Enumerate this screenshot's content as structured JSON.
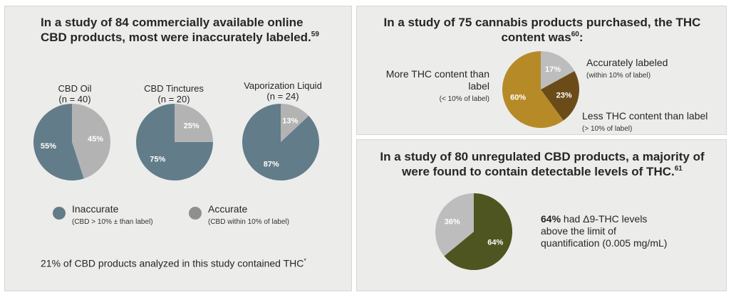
{
  "colors": {
    "inaccurate": "#627c89",
    "accurate": "#b3b3b3",
    "more_thc": "#b78a28",
    "less_thc": "#6b4c19",
    "accurately_labeled": "#bdbdbd",
    "thc_detected": "#4e5520",
    "thc_not_detected": "#bdbdbd"
  },
  "left": {
    "title_line1": "In a study of 84 commercially available online",
    "title_line2": "CBD products, most were inaccurately labeled.",
    "title_ref": "59",
    "legend": {
      "inaccurate_label": "Inaccurate",
      "inaccurate_sub": "(CBD > 10% ± than label)",
      "accurate_label": "Accurate",
      "accurate_sub": "(CBD within  10% of label)"
    },
    "footnote": "21% of CBD products analyzed in this study contained THC",
    "footnote_mark": "*"
  },
  "top_right": {
    "title_line1": "In a study of 75 cannabis products purchased, the THC",
    "title_line2": "content was",
    "title_ref": "60",
    "title_colon": ":",
    "more_label_line1": "More THC content than",
    "more_label_line2": "label",
    "more_sub": "(< 10% of label)",
    "accurate_label": "Accurately labeled",
    "accurate_sub": "(within  10% of label)",
    "less_label": "Less THC content than label",
    "less_sub": "(> 10% of label)"
  },
  "bottom_right": {
    "title_line1": "In a study of 80 unregulated CBD products, a majority of",
    "title_line2": "were found to contain detectable levels of THC.",
    "title_ref": "61",
    "desc_bold": "64%",
    "desc_line1": " had Δ9-THC levels",
    "desc_line2": "above the limit of",
    "desc_line3": "quantification (0.005 mg/mL)"
  },
  "chart_data": [
    {
      "type": "pie",
      "title": "CBD Oil",
      "subtitle": "(n = 40)",
      "series": [
        {
          "name": "Inaccurate",
          "value": 55,
          "label": "55%"
        },
        {
          "name": "Accurate",
          "value": 45,
          "label": "45%"
        }
      ]
    },
    {
      "type": "pie",
      "title": "CBD Tinctures",
      "subtitle": "(n = 20)",
      "series": [
        {
          "name": "Inaccurate",
          "value": 75,
          "label": "75%"
        },
        {
          "name": "Accurate",
          "value": 25,
          "label": "25%"
        }
      ]
    },
    {
      "type": "pie",
      "title": "Vaporization Liquid",
      "subtitle": "(n = 24)",
      "series": [
        {
          "name": "Inaccurate",
          "value": 87,
          "label": "87%"
        },
        {
          "name": "Accurate",
          "value": 13,
          "label": "13%"
        }
      ]
    },
    {
      "type": "pie",
      "series": [
        {
          "name": "More THC content than label",
          "value": 60,
          "label": "60%"
        },
        {
          "name": "Accurately labeled",
          "value": 17,
          "label": "17%"
        },
        {
          "name": "Less THC content than label",
          "value": 23,
          "label": "23%"
        }
      ]
    },
    {
      "type": "pie",
      "series": [
        {
          "value": 64,
          "label": "64%"
        },
        {
          "value": 36,
          "label": "36%"
        }
      ]
    }
  ]
}
